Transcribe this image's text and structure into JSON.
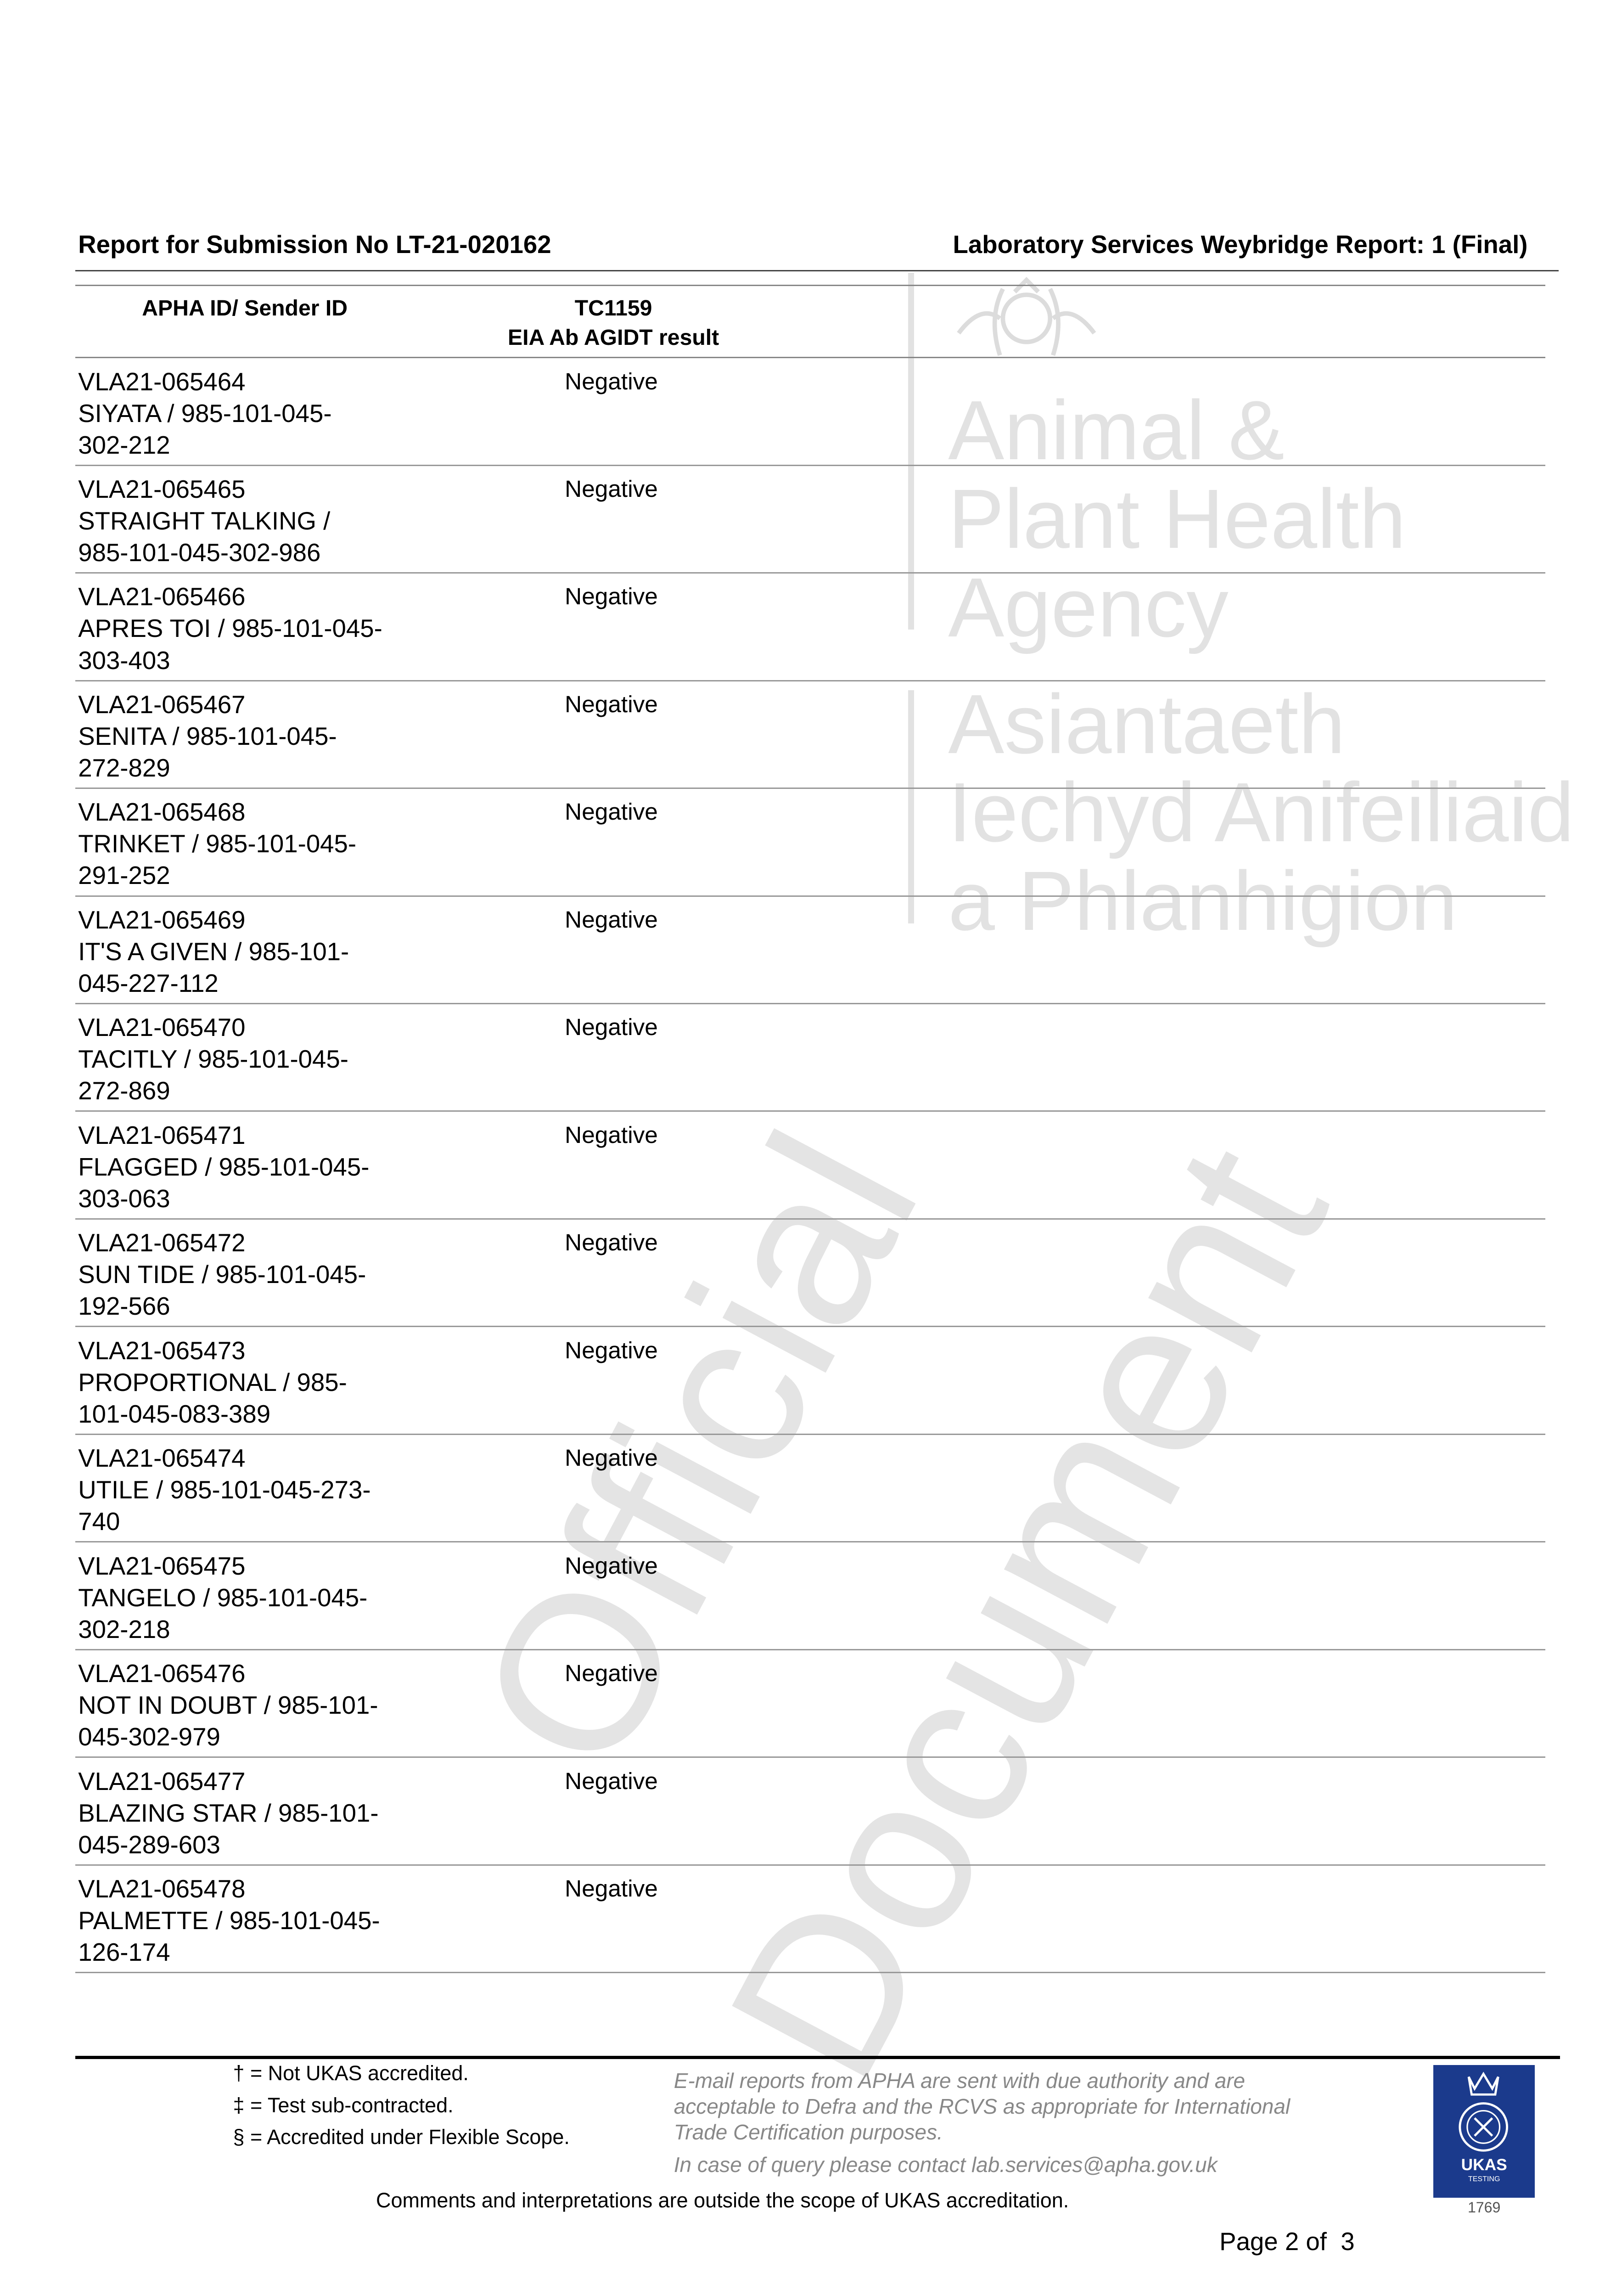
{
  "header": {
    "left": "Report for Submission No LT-21-020162",
    "right": "Laboratory Services Weybridge Report: 1 (Final)"
  },
  "table": {
    "columns": [
      "APHA ID/ Sender ID",
      [
        "TC1159",
        "EIA Ab AGIDT result"
      ]
    ],
    "rows": [
      {
        "id": [
          "VLA21-065464",
          "SIYATA / 985-101-045-",
          "302-212"
        ],
        "result": "Negative"
      },
      {
        "id": [
          "VLA21-065465",
          "STRAIGHT TALKING /",
          "985-101-045-302-986"
        ],
        "result": "Negative"
      },
      {
        "id": [
          "VLA21-065466",
          "APRES TOI / 985-101-045-",
          "303-403"
        ],
        "result": "Negative"
      },
      {
        "id": [
          "VLA21-065467",
          "SENITA / 985-101-045-",
          "272-829"
        ],
        "result": "Negative"
      },
      {
        "id": [
          "VLA21-065468",
          "TRINKET / 985-101-045-",
          "291-252"
        ],
        "result": "Negative"
      },
      {
        "id": [
          "VLA21-065469",
          "IT'S A GIVEN / 985-101-",
          "045-227-112"
        ],
        "result": "Negative"
      },
      {
        "id": [
          "VLA21-065470",
          "TACITLY / 985-101-045-",
          "272-869"
        ],
        "result": "Negative"
      },
      {
        "id": [
          "VLA21-065471",
          "FLAGGED / 985-101-045-",
          "303-063"
        ],
        "result": "Negative"
      },
      {
        "id": [
          "VLA21-065472",
          "SUN TIDE / 985-101-045-",
          "192-566"
        ],
        "result": "Negative"
      },
      {
        "id": [
          "VLA21-065473",
          "PROPORTIONAL / 985-",
          "101-045-083-389"
        ],
        "result": "Negative"
      },
      {
        "id": [
          "VLA21-065474",
          "UTILE / 985-101-045-273-",
          "740"
        ],
        "result": "Negative"
      },
      {
        "id": [
          "VLA21-065475",
          "TANGELO / 985-101-045-",
          "302-218"
        ],
        "result": "Negative"
      },
      {
        "id": [
          "VLA21-065476",
          "NOT IN DOUBT / 985-101-",
          "045-302-979"
        ],
        "result": "Negative"
      },
      {
        "id": [
          "VLA21-065477",
          "BLAZING STAR / 985-101-",
          "045-289-603"
        ],
        "result": "Negative"
      },
      {
        "id": [
          "VLA21-065478",
          "PALMETTE / 985-101-045-",
          "126-174"
        ],
        "result": "Negative"
      }
    ]
  },
  "watermark": {
    "agency_en": [
      "Animal &",
      "Plant Health",
      "Agency"
    ],
    "agency_cy": [
      "Asiantaeth",
      "Iechyd Anifeiliaid",
      "a Phlanhigion"
    ],
    "stamp": [
      "Official",
      "Document"
    ]
  },
  "footer": {
    "legend": [
      "† = Not UKAS accredited.",
      "‡ = Test sub-contracted.",
      "§ = Accredited under Flexible Scope."
    ],
    "notice": [
      "E-mail reports from APHA are sent with due authority and are",
      "acceptable to Defra and the RCVS as appropriate for International",
      "Trade Certification purposes."
    ],
    "contact": "In case of query please contact lab.services@apha.gov.uk",
    "comments": "Comments and interpretations are outside the scope of UKAS accreditation.",
    "ukas": {
      "label": "UKAS",
      "sub": "TESTING",
      "number": "1769",
      "color": "#1b3a8c"
    },
    "page": "Page 2 of  3"
  }
}
